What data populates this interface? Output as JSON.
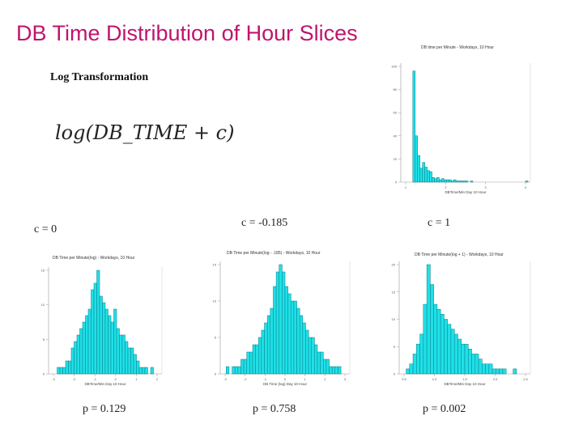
{
  "slide": {
    "title": "DB Time Distribution of Hour Slices",
    "subtitle": "Log Transformation",
    "formula": "log(DB_TIME + c)"
  },
  "labels": {
    "c0": "c = 0",
    "c1": "c = -0.185",
    "c2": "c = 1",
    "p0": "p = 0.129",
    "p1": "p = 0.758",
    "p2": "p = 0.002"
  },
  "colors": {
    "bar_fill": "#1fe0e8",
    "bar_stroke": "#0a7f86",
    "title": "#c0146e"
  },
  "chart_data": [
    {
      "id": "raw",
      "type": "bar",
      "title": "DB time per Minute - Workdays, 10 Hour",
      "xlabel": "DBTime/Min Day 10 Hour",
      "ylabel": "",
      "bins": 54,
      "values": [
        0,
        0,
        0,
        0,
        0,
        96,
        40,
        23,
        12,
        17,
        13,
        10,
        9,
        4,
        3,
        4,
        2,
        3,
        2,
        2,
        2,
        1,
        2,
        1,
        1,
        1,
        1,
        1,
        0,
        1,
        0,
        0,
        0,
        0,
        0,
        0,
        0,
        0,
        0,
        0,
        0,
        0,
        0,
        0,
        0,
        0,
        0,
        0,
        0,
        0,
        0,
        0,
        1,
        0
      ],
      "xlim": [
        0,
        4
      ],
      "ylim": [
        0,
        100
      ],
      "xticks": [
        "1",
        "2",
        "3",
        "4"
      ],
      "yticks": [
        "0",
        "20",
        "40",
        "60",
        "80",
        "100"
      ]
    },
    {
      "id": "c0",
      "type": "bar",
      "title": "DB Time per Minute(log) - Workdays, 10 Hour",
      "xlabel": "DBTime/Min Day 10 Hour",
      "ylabel": "",
      "bins": 40,
      "values": [
        0,
        0,
        0,
        1,
        1,
        1,
        2,
        2,
        4,
        5,
        6,
        7,
        8,
        9,
        10,
        13,
        14,
        16,
        12,
        11,
        10,
        9,
        8,
        10,
        7,
        6,
        6,
        5,
        4,
        4,
        3,
        2,
        1,
        1,
        1,
        0,
        1,
        0,
        0,
        0
      ],
      "xlim": [
        -3,
        2
      ],
      "ylim": [
        0,
        16
      ],
      "xticks": [
        "-3",
        "-2",
        "-1",
        "0",
        "1",
        "2"
      ],
      "yticks": [
        "0",
        "5",
        "10",
        "15"
      ]
    },
    {
      "id": "c1",
      "type": "bar",
      "title": "DB Time per Minute(log - .185) - Workdays, 10 Hour",
      "xlabel": "DB Time (log) Day 10 Hour",
      "ylabel": "",
      "bins": 44,
      "values": [
        0,
        0,
        1,
        0,
        1,
        1,
        1,
        2,
        2,
        3,
        3,
        4,
        4,
        5,
        6,
        7,
        8,
        9,
        12,
        14,
        15,
        14,
        12,
        11,
        10,
        10,
        9,
        8,
        7,
        6,
        5,
        5,
        4,
        3,
        3,
        2,
        2,
        1,
        1,
        1,
        1,
        0,
        0,
        0
      ],
      "xlim": [
        -3,
        3
      ],
      "ylim": [
        0,
        15
      ],
      "xticks": [
        "-3",
        "-2",
        "-1",
        "0",
        "1",
        "2",
        "3"
      ],
      "yticks": [
        "0",
        "5",
        "10",
        "15"
      ]
    },
    {
      "id": "c2",
      "type": "bar",
      "title": "DB Time per Minute(log + 1) - Workdays, 10 Hour",
      "xlabel": "DBTime/Min Day 10 Hour",
      "ylabel": "",
      "bins": 38,
      "values": [
        0,
        0,
        1,
        2,
        4,
        6,
        8,
        14,
        22,
        18,
        14,
        13,
        12,
        11,
        10,
        9,
        8,
        7,
        6,
        6,
        5,
        4,
        4,
        3,
        2,
        2,
        2,
        1,
        1,
        1,
        1,
        0,
        0,
        1,
        0,
        0,
        0,
        0
      ],
      "xlim": [
        0,
        2.5
      ],
      "ylim": [
        0,
        22
      ],
      "xticks": [
        "0.5",
        "1.0",
        "1.5",
        "2.0",
        "2.5"
      ],
      "yticks": [
        "0",
        "5",
        "10",
        "15",
        "20"
      ]
    }
  ]
}
